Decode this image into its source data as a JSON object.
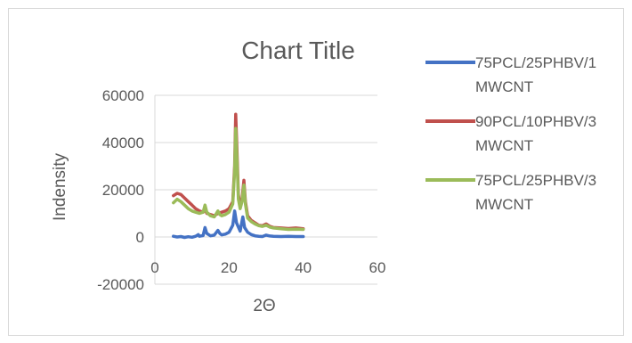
{
  "chart_data": {
    "type": "line",
    "title": "Chart Title",
    "xlabel": "2Θ",
    "ylabel": "Indensity",
    "xlim": [
      0,
      60
    ],
    "ylim": [
      -20000,
      60000
    ],
    "x_ticks": [
      "0",
      "20",
      "40",
      "60"
    ],
    "y_ticks": [
      "-20000",
      "0",
      "20000",
      "40000",
      "60000"
    ],
    "grid": "horizontal",
    "legend_position": "right",
    "series": [
      {
        "name": "75PCL/25PHBV/1 MWCNT",
        "legend_lines": [
          "75PCL/25PHBV/1",
          "MWCNT"
        ],
        "color": "#4472C4",
        "points": [
          [
            5,
            300
          ],
          [
            6,
            0
          ],
          [
            7,
            200
          ],
          [
            8,
            -200
          ],
          [
            9,
            100
          ],
          [
            10,
            -100
          ],
          [
            11,
            300
          ],
          [
            11.7,
            1000
          ],
          [
            12,
            300
          ],
          [
            13,
            600
          ],
          [
            13.5,
            4000
          ],
          [
            14,
            1500
          ],
          [
            15,
            500
          ],
          [
            16,
            800
          ],
          [
            17,
            2800
          ],
          [
            17.5,
            1500
          ],
          [
            18,
            900
          ],
          [
            19,
            1200
          ],
          [
            20,
            2000
          ],
          [
            21,
            5000
          ],
          [
            21.5,
            11000
          ],
          [
            22,
            6000
          ],
          [
            23,
            2500
          ],
          [
            23.7,
            8500
          ],
          [
            24.2,
            4000
          ],
          [
            25,
            2000
          ],
          [
            26,
            1000
          ],
          [
            27,
            500
          ],
          [
            28,
            300
          ],
          [
            29,
            200
          ],
          [
            30,
            800
          ],
          [
            31,
            400
          ],
          [
            32,
            300
          ],
          [
            34,
            200
          ],
          [
            36,
            300
          ],
          [
            38,
            200
          ],
          [
            40,
            200
          ]
        ]
      },
      {
        "name": "90PCL/10PHBV/3 MWCNT",
        "legend_lines": [
          "90PCL/10PHBV/3",
          "MWCNT"
        ],
        "color": "#C0504D",
        "points": [
          [
            5,
            17500
          ],
          [
            6,
            18500
          ],
          [
            7,
            18000
          ],
          [
            8,
            16500
          ],
          [
            9,
            15000
          ],
          [
            10,
            13500
          ],
          [
            11,
            12000
          ],
          [
            12,
            11000
          ],
          [
            13,
            10500
          ],
          [
            13.6,
            11500
          ],
          [
            14,
            10000
          ],
          [
            15,
            9500
          ],
          [
            16,
            9000
          ],
          [
            17,
            10000
          ],
          [
            18,
            10500
          ],
          [
            19,
            11000
          ],
          [
            20,
            12000
          ],
          [
            21,
            15000
          ],
          [
            21.5,
            30000
          ],
          [
            21.8,
            52000
          ],
          [
            22.1,
            38000
          ],
          [
            22.5,
            18000
          ],
          [
            23,
            13000
          ],
          [
            23.5,
            16000
          ],
          [
            24,
            24000
          ],
          [
            24.4,
            15000
          ],
          [
            25,
            9000
          ],
          [
            26,
            7000
          ],
          [
            27,
            6000
          ],
          [
            28,
            5000
          ],
          [
            29,
            4800
          ],
          [
            30,
            5500
          ],
          [
            31,
            4500
          ],
          [
            32,
            4000
          ],
          [
            34,
            3800
          ],
          [
            36,
            3600
          ],
          [
            38,
            3800
          ],
          [
            40,
            3500
          ]
        ]
      },
      {
        "name": "75PCL/25PHBV/3 MWCNT",
        "legend_lines": [
          "75PCL/25PHBV/3",
          "MWCNT"
        ],
        "color": "#9BBB59",
        "points": [
          [
            5,
            14500
          ],
          [
            6,
            16000
          ],
          [
            7,
            15000
          ],
          [
            8,
            13500
          ],
          [
            9,
            12000
          ],
          [
            10,
            11000
          ],
          [
            11,
            10500
          ],
          [
            12,
            10000
          ],
          [
            13,
            10500
          ],
          [
            13.5,
            13500
          ],
          [
            14,
            10500
          ],
          [
            15,
            9000
          ],
          [
            16,
            8500
          ],
          [
            17,
            11000
          ],
          [
            17.5,
            9500
          ],
          [
            18,
            9000
          ],
          [
            19,
            9500
          ],
          [
            20,
            10500
          ],
          [
            21,
            14000
          ],
          [
            21.5,
            28000
          ],
          [
            21.8,
            46000
          ],
          [
            22.1,
            34000
          ],
          [
            22.5,
            16000
          ],
          [
            23,
            12000
          ],
          [
            23.5,
            15000
          ],
          [
            24,
            22000
          ],
          [
            24.4,
            14000
          ],
          [
            25,
            8000
          ],
          [
            26,
            6500
          ],
          [
            27,
            5500
          ],
          [
            28,
            4800
          ],
          [
            29,
            4500
          ],
          [
            30,
            5000
          ],
          [
            31,
            4200
          ],
          [
            32,
            3800
          ],
          [
            34,
            3500
          ],
          [
            36,
            3200
          ],
          [
            38,
            3300
          ],
          [
            40,
            3200
          ]
        ]
      }
    ]
  }
}
